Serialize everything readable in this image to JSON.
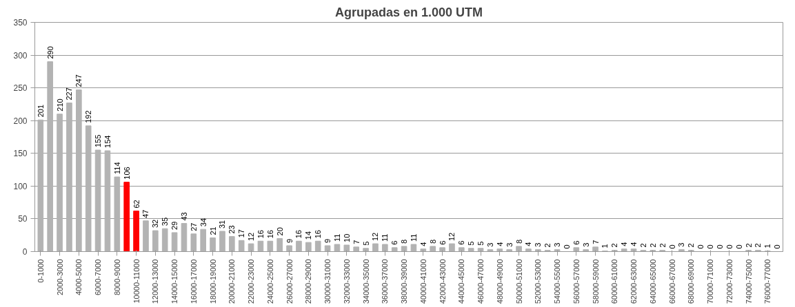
{
  "chart_data": {
    "type": "bar",
    "title": "Agrupadas en 1.000 UTM",
    "categories": [
      "0-1000",
      null,
      "2000-3000",
      null,
      "4000-5000",
      null,
      "6000-7000",
      null,
      "8000-9000",
      null,
      "10000-11000",
      null,
      "12000-13000",
      null,
      "14000-15000",
      null,
      "16000-17000",
      null,
      "18000-19000",
      null,
      "20000-21000",
      null,
      "22000-23000",
      null,
      "24000-25000",
      null,
      "26000-27000",
      null,
      "28000-29000",
      null,
      "30000-31000",
      null,
      "32000-33000",
      null,
      "34000-35000",
      null,
      "36000-37000",
      null,
      "38000-39000",
      null,
      "40000-41000",
      null,
      "42000-43000",
      null,
      "44000-45000",
      null,
      "46000-47000",
      null,
      "48000-49000",
      null,
      "50000-51000",
      null,
      "52000-53000",
      null,
      "54000-55000",
      null,
      "56000-57000",
      null,
      "58000-59000",
      null,
      "60000-61000",
      null,
      "62000-63000",
      null,
      "64000-65000",
      null,
      "66000-67000",
      null,
      "68000-69000",
      null,
      "70000-71000",
      null,
      "72000-73000",
      null,
      "74000-75000",
      null,
      "76000-77000",
      null
    ],
    "values": [
      201,
      290,
      210,
      227,
      247,
      192,
      155,
      154,
      114,
      106,
      62,
      47,
      32,
      35,
      29,
      43,
      27,
      34,
      21,
      31,
      23,
      17,
      12,
      16,
      16,
      20,
      9,
      16,
      14,
      16,
      9,
      11,
      10,
      7,
      5,
      12,
      11,
      6,
      8,
      11,
      4,
      8,
      6,
      12,
      6,
      5,
      5,
      3,
      4,
      3,
      8,
      4,
      3,
      2,
      3,
      0,
      6,
      3,
      7,
      1,
      2,
      4,
      4,
      2,
      2,
      2,
      0,
      3,
      2,
      0,
      0,
      0,
      0,
      0,
      2,
      2,
      1,
      0
    ],
    "colors": [
      "#b3b3b3",
      "#b3b3b3",
      "#b3b3b3",
      "#b3b3b3",
      "#b3b3b3",
      "#b3b3b3",
      "#b3b3b3",
      "#b3b3b3",
      "#b3b3b3",
      "#ff0000",
      "#ff0000",
      "#b3b3b3",
      "#b3b3b3",
      "#b3b3b3",
      "#b3b3b3",
      "#b3b3b3",
      "#b3b3b3",
      "#b3b3b3",
      "#b3b3b3",
      "#b3b3b3",
      "#b3b3b3",
      "#b3b3b3",
      "#b3b3b3",
      "#b3b3b3",
      "#b3b3b3",
      "#b3b3b3",
      "#b3b3b3",
      "#b3b3b3",
      "#b3b3b3",
      "#b3b3b3",
      "#b3b3b3",
      "#b3b3b3",
      "#b3b3b3",
      "#b3b3b3",
      "#b3b3b3",
      "#b3b3b3",
      "#b3b3b3",
      "#b3b3b3",
      "#b3b3b3",
      "#b3b3b3",
      "#b3b3b3",
      "#b3b3b3",
      "#b3b3b3",
      "#b3b3b3",
      "#b3b3b3",
      "#b3b3b3",
      "#b3b3b3",
      "#b3b3b3",
      "#b3b3b3",
      "#b3b3b3",
      "#b3b3b3",
      "#b3b3b3",
      "#b3b3b3",
      "#b3b3b3",
      "#b3b3b3",
      "#b3b3b3",
      "#b3b3b3",
      "#b3b3b3",
      "#b3b3b3",
      "#b3b3b3",
      "#b3b3b3",
      "#b3b3b3",
      "#b3b3b3",
      "#b3b3b3",
      "#b3b3b3",
      "#b3b3b3",
      "#b3b3b3",
      "#b3b3b3",
      "#b3b3b3",
      "#b3b3b3",
      "#b3b3b3",
      "#b3b3b3",
      "#b3b3b3",
      "#b3b3b3",
      "#b3b3b3",
      "#b3b3b3",
      "#b3b3b3",
      "#b3b3b3"
    ],
    "ylim": [
      0,
      350
    ],
    "yticks": [
      0,
      50,
      100,
      150,
      200,
      250,
      300,
      350
    ],
    "grid": "y",
    "data_labels": true
  }
}
